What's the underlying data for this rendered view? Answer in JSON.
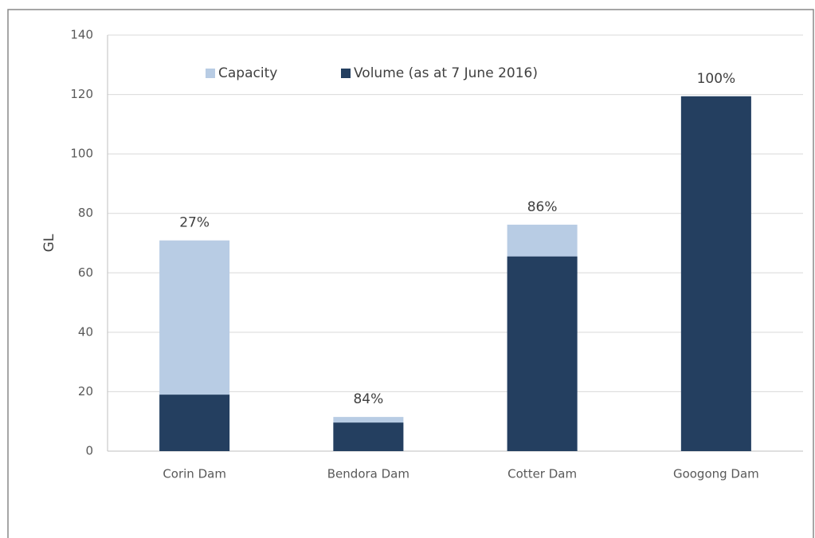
{
  "chart_data": {
    "type": "overlap_bar",
    "y_label": "GL",
    "categories": [
      "Corin Dam",
      "Bendora Dam",
      "Cotter Dam",
      "Googong Dam"
    ],
    "series": [
      {
        "name": "Capacity",
        "color": "#b8cce4",
        "values": [
          70.9,
          11.5,
          76.2,
          119.4
        ]
      },
      {
        "name": "Volume (as at 7 June 2016)",
        "color": "#243f60",
        "values": [
          19,
          9.6,
          65.5,
          119.4
        ]
      }
    ],
    "annotations": [
      "27%",
      "84%",
      "86%",
      "100%"
    ],
    "ylim": [
      0,
      140
    ],
    "yticks": [
      0,
      20,
      40,
      60,
      80,
      100,
      120,
      140
    ],
    "grid": true,
    "legend": "top"
  }
}
